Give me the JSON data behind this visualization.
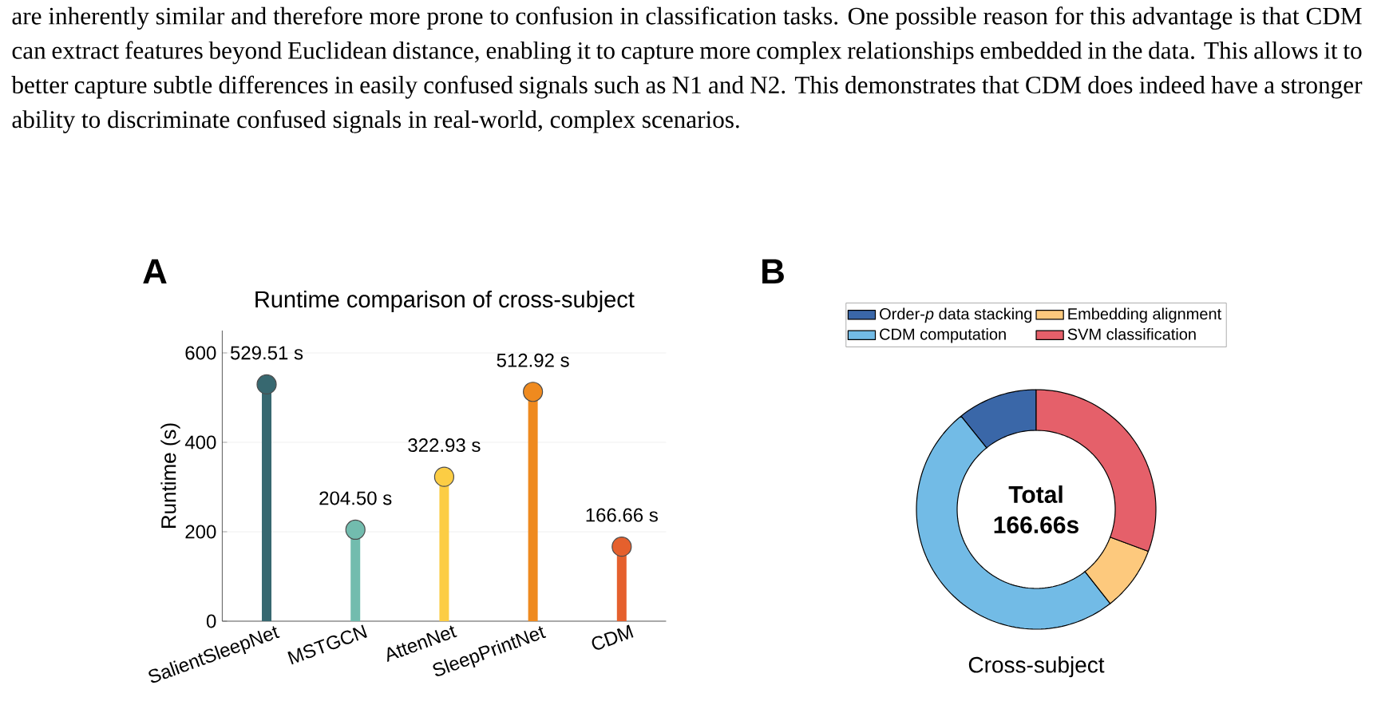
{
  "chart_data": [
    {
      "type": "other",
      "annotations": [
        "are inherently similar and therefore more prone to confusion in classification tasks. One possible reason for this advantage is that CDM can extract features beyond Euclidean distance, enabling it to capture more complex relationships embedded in the data. This allows it to better capture subtle differences in easily confused signals such as N1 and N2. This demonstrates that CDM does indeed have a stronger ability to discriminate confused signals in real-world, complex scenarios."
      ]
    },
    {
      "type": "lollipop",
      "title": "Runtime comparison of cross-subject",
      "ylabel": "Runtime (s)",
      "categories": [
        "SalientSleepNet",
        "MSTGCN",
        "AttenNet",
        "SleepPrintNet",
        "CDM"
      ],
      "values": [
        529.51,
        204.5,
        322.93,
        512.92,
        166.66
      ],
      "colors": [
        "#376870",
        "#72bcae",
        "#fccd44",
        "#ef8a1f",
        "#e5602d"
      ],
      "value_labels": [
        "529.51 s",
        "204.50 s",
        "322.93 s",
        "512.92 s",
        "166.66 s"
      ],
      "ylim": [
        0,
        650
      ],
      "yticks": [
        0,
        200,
        400,
        600
      ],
      "grid": "y",
      "marker": "circle",
      "annotations": [
        "A"
      ]
    },
    {
      "type": "donut",
      "categories": [
        "Order-*p* data stacking",
        "CDM computation",
        "Embedding alignment",
        "SVM classification"
      ],
      "values": [
        10.8,
        49.8,
        8.7,
        30.7
      ],
      "colors": [
        "#3a67a8",
        "#72bbe6",
        "#fdc97d",
        "#e5606a"
      ],
      "legend": "top",
      "xlabel": "Cross-subject",
      "annotations": [
        "B",
        "Total 166.66s"
      ]
    }
  ]
}
